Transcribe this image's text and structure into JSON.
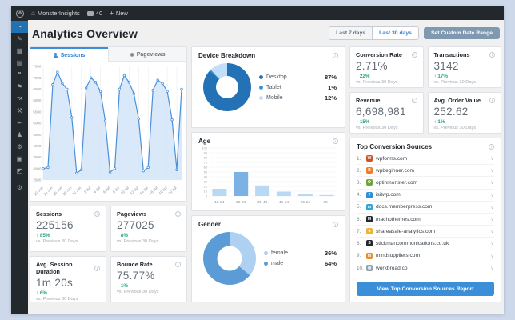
{
  "admin_bar": {
    "wp_logo": "W",
    "site_name": "MonsterInsights",
    "comments_count": "40",
    "new_label": "New",
    "plus": "+"
  },
  "sidebar": {
    "items": [
      {
        "name": "dashboard",
        "glyph": "◔",
        "active": true
      },
      {
        "name": "posts",
        "glyph": "✎",
        "active": false
      },
      {
        "name": "media",
        "glyph": "▦",
        "active": false
      },
      {
        "name": "pages",
        "glyph": "▤",
        "active": false
      },
      {
        "name": "comments",
        "glyph": "❞",
        "active": false
      },
      {
        "name": "appearance",
        "glyph": "⚑",
        "active": false
      },
      {
        "name": "plugin-ta",
        "glyph": "TA",
        "active": false
      },
      {
        "name": "plugins",
        "glyph": "⚒",
        "active": false
      },
      {
        "name": "tools",
        "glyph": "✒",
        "active": false
      },
      {
        "name": "users",
        "glyph": "♟",
        "active": false
      },
      {
        "name": "settings",
        "glyph": "⚙",
        "active": false
      },
      {
        "name": "analytics",
        "glyph": "▣",
        "active": false
      },
      {
        "name": "appearance-alt",
        "glyph": "◩",
        "active": false
      },
      {
        "name": "options",
        "glyph": "⚙",
        "active": false
      }
    ]
  },
  "page": {
    "title": "Analytics Overview"
  },
  "controls": {
    "last7": "Last 7 days",
    "last30": "Last 30 days",
    "custom": "Set Custom Date Range"
  },
  "tabs": {
    "sessions": "Sessions",
    "pageviews": "Pageviews"
  },
  "chart_data": [
    {
      "id": "sessions_trend",
      "type": "area",
      "title": "Sessions",
      "x_labels": [
        "22 Jun",
        "24 Jun",
        "26 Jun",
        "28 Jun",
        "30 Jun",
        "2 Jul",
        "4 Jul",
        "6 Jul",
        "8 Jul",
        "10 Jul",
        "12 Jul",
        "14 Jul",
        "16 Jul",
        "18 Jul",
        "20 Jul"
      ],
      "values": [
        3000,
        3050,
        6700,
        7250,
        6750,
        6500,
        5250,
        2800,
        2950,
        6550,
        7000,
        6800,
        6400,
        5100,
        2850,
        3000,
        6500,
        7100,
        6800,
        6300,
        5200,
        2900,
        3050,
        6450,
        6900,
        6750,
        6400,
        5150,
        2950,
        6500
      ],
      "ylim": [
        2500,
        7500
      ],
      "ytick_step": 500,
      "line_color": "#4a90d9",
      "fill_color": "#cfe4f7",
      "grid": true,
      "legend": "none"
    },
    {
      "id": "device_breakdown",
      "type": "pie",
      "title": "Device Breakdown",
      "slices": [
        {
          "label": "Desktop",
          "value": 87,
          "color": "#2272b5"
        },
        {
          "label": "Tablet",
          "value": 1,
          "color": "#3f93d2"
        },
        {
          "label": "Mobile",
          "value": 12,
          "color": "#c2def8"
        }
      ],
      "unit": "%",
      "legend": "right"
    },
    {
      "id": "age",
      "type": "bar",
      "title": "Age",
      "categories": [
        "18-24",
        "25-34",
        "35-44",
        "45-54",
        "55-64",
        "65+"
      ],
      "values": [
        15,
        50,
        22,
        9,
        4,
        2
      ],
      "ylim": [
        0,
        100
      ],
      "ytick_step": 10,
      "bar_color": "#b9d8f3",
      "highlight_index": 1,
      "highlight_color": "#7cb1e4",
      "grid": true,
      "legend": "none"
    },
    {
      "id": "gender",
      "type": "pie",
      "title": "Gender",
      "slices": [
        {
          "label": "female",
          "value": 36,
          "color": "#aed1f2"
        },
        {
          "label": "male",
          "value": 64,
          "color": "#5b9cd6"
        }
      ],
      "unit": "%",
      "legend": "right"
    }
  ],
  "metrics_small": [
    {
      "label": "Sessions",
      "value": "225156",
      "direction": "up",
      "change": "85%",
      "note": "vs. Previous 30 Days"
    },
    {
      "label": "Pageviews",
      "value": "277025",
      "direction": "up",
      "change": "8%",
      "note": "vs. Previous 30 Days"
    },
    {
      "label": "Avg. Session Duration",
      "value": "1m 20s",
      "direction": "up",
      "change": "6%",
      "note": "vs. Previous 30 Days"
    },
    {
      "label": "Bounce Rate",
      "value": "75.77%",
      "direction": "down",
      "change": "1%",
      "note": "vs. Previous 30 Days"
    }
  ],
  "metrics_ecommerce": [
    {
      "label": "Conversion Rate",
      "value": "2.71%",
      "direction": "up",
      "change": "22%",
      "note": "vs. Previous 30 Days"
    },
    {
      "label": "Transactions",
      "value": "3142",
      "direction": "up",
      "change": "17%",
      "note": "vs. Previous 30 Days"
    },
    {
      "label": "Revenue",
      "value": "6,698,981",
      "direction": "up",
      "change": "15%",
      "note": "vs. Previous 30 Days"
    },
    {
      "label": "Avg. Order Value",
      "value": "252.62",
      "direction": "up",
      "change": "1%",
      "note": "vs. Previous 30 Days"
    }
  ],
  "sources": {
    "title": "Top Conversion Sources",
    "items": [
      {
        "rank": "1.",
        "domain": "wpforms.com",
        "icon_bg": "#c4562a",
        "glyph": "W"
      },
      {
        "rank": "2.",
        "domain": "wpbeginner.com",
        "icon_bg": "#f47c20",
        "glyph": "B"
      },
      {
        "rank": "3.",
        "domain": "optinmonster.com",
        "icon_bg": "#71a338",
        "glyph": "O"
      },
      {
        "rank": "4.",
        "domain": "isitwp.com",
        "icon_bg": "#2f8fd4",
        "glyph": "?"
      },
      {
        "rank": "5.",
        "domain": "docs.memberpress.com",
        "icon_bg": "#2fa7dd",
        "glyph": "m"
      },
      {
        "rank": "6.",
        "domain": "machothemes.com",
        "icon_bg": "#22292f",
        "glyph": "M"
      },
      {
        "rank": "7.",
        "domain": "shareasale-analytics.com",
        "icon_bg": "#f0b32d",
        "glyph": "★"
      },
      {
        "rank": "8.",
        "domain": "stickmancommunications.co.uk",
        "icon_bg": "#23282d",
        "glyph": "S"
      },
      {
        "rank": "9.",
        "domain": "mindsuppliers.com",
        "icon_bg": "#ef8c22",
        "glyph": "m"
      },
      {
        "rank": "10.",
        "domain": "workbroad.co",
        "icon_bg": "#8fa3b0",
        "glyph": "◍"
      }
    ],
    "button_label": "View Top Conversion Sources Report"
  },
  "colors": {
    "accent_blue": "#3a8fd6",
    "positive_green": "#2aa57c",
    "admin_dark": "#23282d",
    "active_item_blue": "#2271b1"
  }
}
